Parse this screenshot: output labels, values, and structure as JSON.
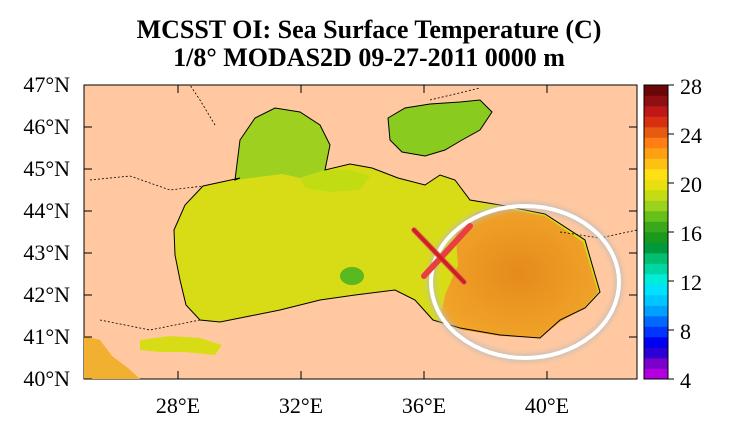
{
  "title": {
    "line1": "MCSST OI:  Sea Surface Temperature (C)",
    "line2": "1/8° MODAS2D 09-27-2011 0000 m"
  },
  "axes": {
    "lat_labels": [
      "47°N",
      "46°N",
      "45°N",
      "44°N",
      "43°N",
      "42°N",
      "41°N",
      "40°N"
    ],
    "lon_labels": [
      "28°E",
      "32°E",
      "36°E",
      "40°E"
    ]
  },
  "colorbar": {
    "min": 4,
    "max": 28,
    "step": 1,
    "labels": [
      "28",
      "24",
      "20",
      "16",
      "12",
      "8",
      "4"
    ],
    "colors": [
      "#b300e0",
      "#7a00cc",
      "#2a00d4",
      "#0000f0",
      "#0035ff",
      "#006aff",
      "#00a0ff",
      "#00c6ff",
      "#00e0ff",
      "#00ecd8",
      "#00d6a4",
      "#00c070",
      "#009a3c",
      "#1a9a1c",
      "#3aa818",
      "#66c018",
      "#9ad21c",
      "#c4dc14",
      "#e6e010",
      "#ffe014",
      "#ffc014",
      "#ffa014",
      "#ff7f14",
      "#e85a10",
      "#d83010",
      "#c01818",
      "#901010",
      "#6a0808"
    ]
  },
  "features": {
    "land_color": "#ffc8a0",
    "annotation_circle": "warm SST region off the eastern Black Sea coast",
    "annotation_cross": "red X marker near 36.5°E, 42.8°N"
  }
}
